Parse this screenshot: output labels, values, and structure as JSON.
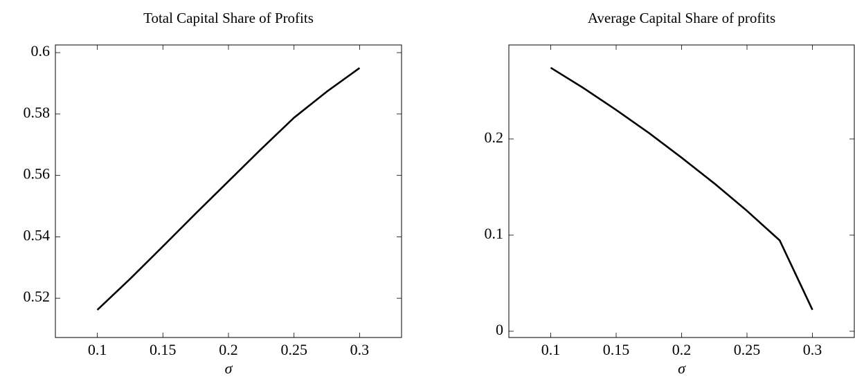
{
  "chart_data": [
    {
      "type": "line",
      "title": "Total Capital Share of Profits",
      "x_label": "σ",
      "x": [
        0.1,
        0.125,
        0.15,
        0.175,
        0.2,
        0.225,
        0.25,
        0.275,
        0.3
      ],
      "series": [
        {
          "color": "#000000",
          "values": [
            0.5162,
            0.5263,
            0.5369,
            0.5476,
            0.5581,
            0.5686,
            0.5788,
            0.5873,
            0.595
          ]
        }
      ],
      "xlim": [
        0.068,
        0.332
      ],
      "ylim": [
        0.5072,
        0.6025
      ],
      "xticks": [
        0.1,
        0.15,
        0.2,
        0.25,
        0.3
      ],
      "yticks": [
        0.52,
        0.54,
        0.56,
        0.58,
        0.6
      ]
    },
    {
      "type": "line",
      "title": "Average Capital Share of profits",
      "x_label": "σ",
      "x": [
        0.1,
        0.125,
        0.15,
        0.175,
        0.2,
        0.225,
        0.25,
        0.275,
        0.3
      ],
      "series": [
        {
          "color": "#000000",
          "values": [
            0.2741,
            0.253,
            0.2302,
            0.2063,
            0.1806,
            0.1538,
            0.1252,
            0.0945,
            0.0223
          ]
        }
      ],
      "xlim": [
        0.068,
        0.332
      ],
      "ylim": [
        -0.0065,
        0.2978
      ],
      "xticks": [
        0.1,
        0.15,
        0.2,
        0.25,
        0.3
      ],
      "yticks": [
        0,
        0.1,
        0.2
      ]
    }
  ]
}
